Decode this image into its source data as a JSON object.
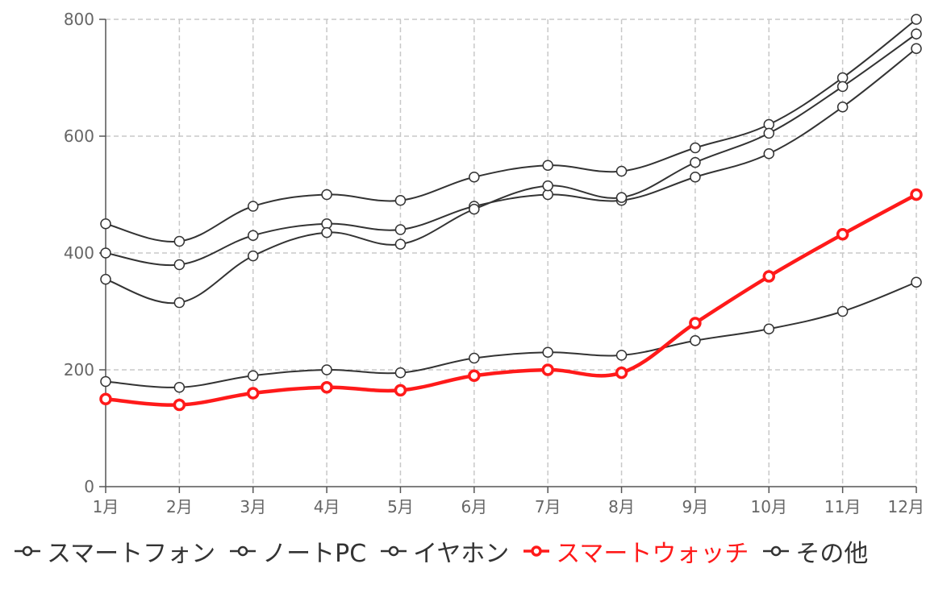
{
  "chart_data": {
    "type": "line",
    "categories": [
      "1月",
      "2月",
      "3月",
      "4月",
      "5月",
      "6月",
      "7月",
      "8月",
      "9月",
      "10月",
      "11月",
      "12月"
    ],
    "ylim": [
      0,
      800
    ],
    "yticks": [
      0,
      200,
      400,
      600,
      800
    ],
    "grid": true,
    "legend_position": "bottom",
    "series": [
      {
        "name": "スマートフォン",
        "color": "#333333",
        "highlight": false,
        "values": [
          450,
          420,
          480,
          500,
          490,
          530,
          550,
          540,
          580,
          620,
          700,
          800
        ]
      },
      {
        "name": "ノートPC",
        "color": "#333333",
        "highlight": false,
        "values": [
          400,
          380,
          430,
          450,
          440,
          480,
          500,
          490,
          530,
          570,
          650,
          750
        ]
      },
      {
        "name": "イヤホン",
        "color": "#333333",
        "highlight": false,
        "values": [
          355,
          315,
          395,
          435,
          415,
          475,
          515,
          495,
          555,
          605,
          685,
          775
        ]
      },
      {
        "name": "スマートウォッチ",
        "color": "#ff1a1a",
        "highlight": true,
        "values": [
          150,
          140,
          160,
          170,
          165,
          190,
          200,
          195,
          280,
          360,
          432,
          500
        ]
      },
      {
        "name": "その他",
        "color": "#333333",
        "highlight": false,
        "values": [
          180,
          170,
          190,
          200,
          195,
          220,
          230,
          225,
          250,
          270,
          300,
          350
        ]
      }
    ]
  }
}
